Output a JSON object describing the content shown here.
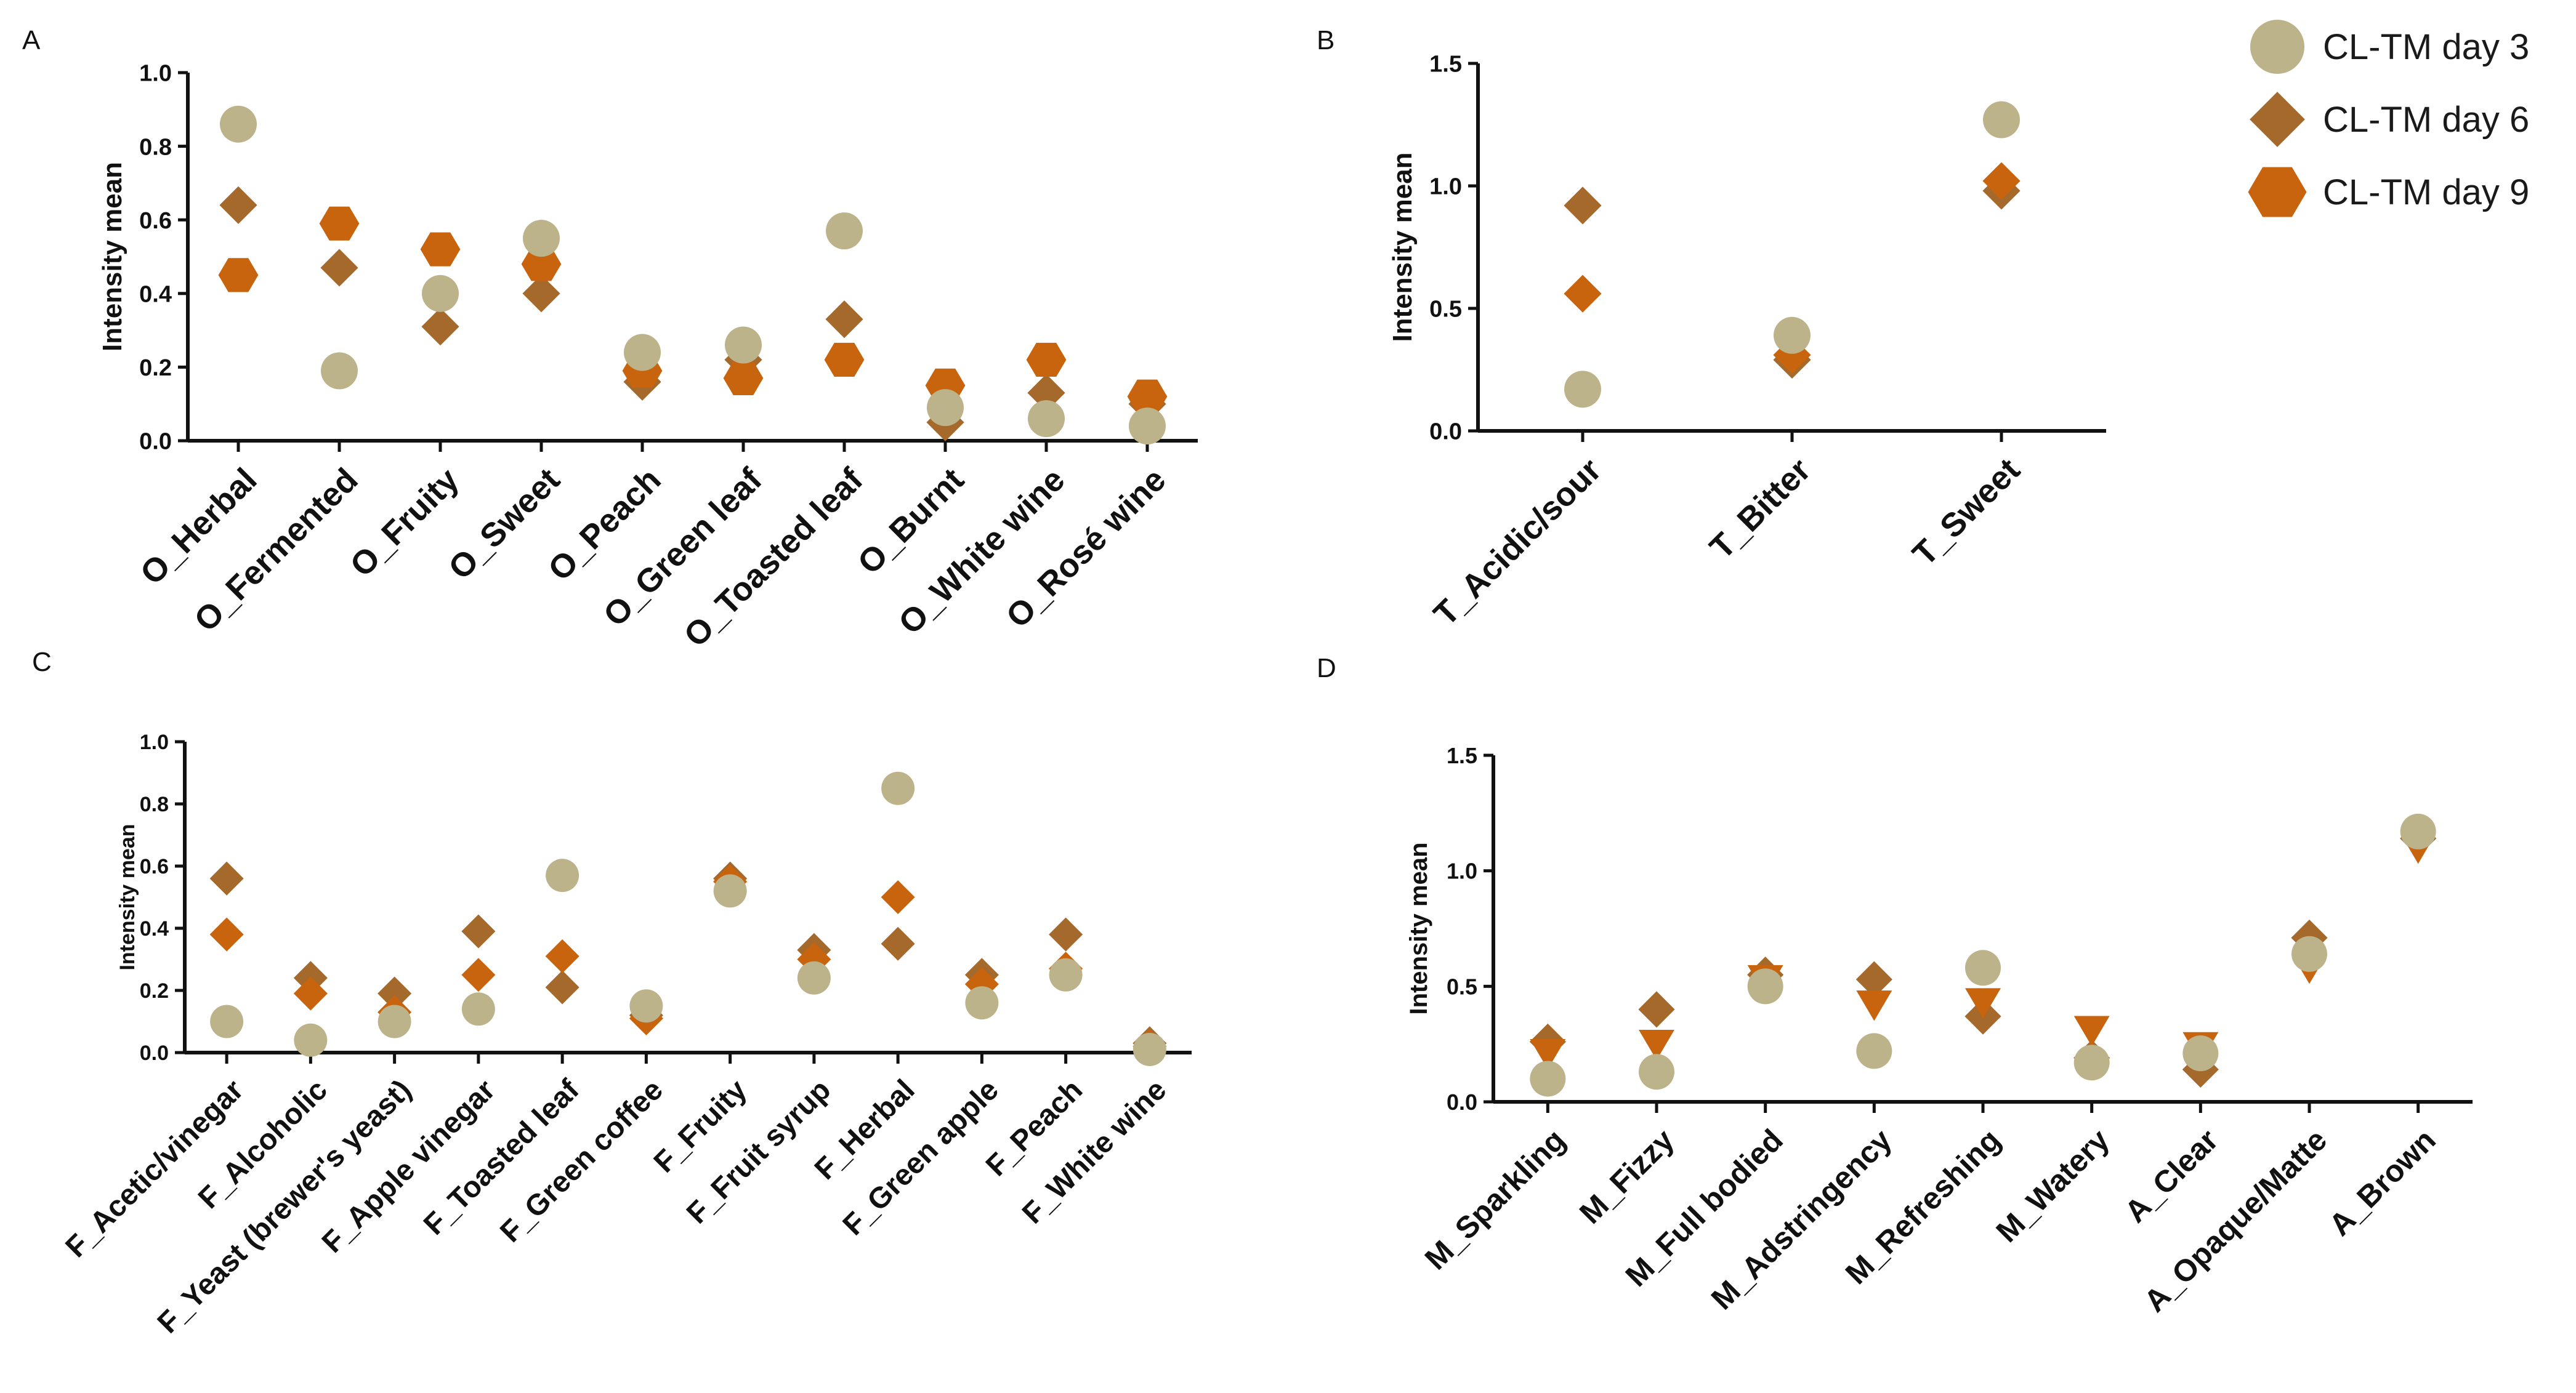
{
  "colors": {
    "CL-TM day 3": "#BDB38A",
    "CL-TM day 6": "#A6692C",
    "CL-TM day 9": "#C9640E"
  },
  "legend": [
    {
      "name": "CL-TM day 3",
      "marker": "circle"
    },
    {
      "name": "CL-TM day 6",
      "marker": "diamond"
    },
    {
      "name": "CL-TM day 9",
      "marker": "hexagon"
    }
  ],
  "chart_data": [
    {
      "panel": "A",
      "type": "scatter",
      "ylabel": "Intensity mean",
      "ylim": [
        0,
        1.0
      ],
      "yticks": [
        "0.0",
        "0.2",
        "0.4",
        "0.6",
        "0.8",
        "1.0"
      ],
      "categories": [
        "O_Herbal",
        "O_Fermented",
        "O_Fruity",
        "O_Sweet",
        "O_Peach",
        "O_Green leaf",
        "O_Toasted leaf",
        "O_Burnt",
        "O_White wine",
        "O_Rosé wine"
      ],
      "series": [
        {
          "name": "CL-TM day 3",
          "marker": "circle",
          "values": [
            0.86,
            0.19,
            0.4,
            0.55,
            0.24,
            0.26,
            0.57,
            0.09,
            0.06,
            0.04
          ]
        },
        {
          "name": "CL-TM day 6",
          "marker": "diamond",
          "values": [
            0.64,
            0.47,
            0.31,
            0.4,
            0.16,
            0.22,
            0.33,
            0.05,
            0.13,
            0.1
          ]
        },
        {
          "name": "CL-TM day 9",
          "marker": "hexagon",
          "values": [
            0.45,
            0.59,
            0.52,
            0.48,
            0.19,
            0.17,
            0.22,
            0.15,
            0.22,
            0.12
          ]
        }
      ]
    },
    {
      "panel": "B",
      "type": "scatter",
      "ylabel": "Intensity mean",
      "ylim": [
        0,
        1.5
      ],
      "yticks": [
        "0.0",
        "0.5",
        "1.0",
        "1.5"
      ],
      "categories": [
        "T_Acidic/sour",
        "T_Bitter",
        "T_Sweet"
      ],
      "series": [
        {
          "name": "CL-TM day 3",
          "marker": "circle",
          "values": [
            0.17,
            0.39,
            1.27
          ]
        },
        {
          "name": "CL-TM day 6",
          "marker": "diamond",
          "values": [
            0.92,
            0.29,
            0.98
          ]
        },
        {
          "name": "CL-TM day 9",
          "marker": "diamond",
          "values": [
            0.56,
            0.31,
            1.02
          ]
        }
      ]
    },
    {
      "panel": "C",
      "type": "scatter",
      "ylabel": "Intensity mean",
      "ylim": [
        0,
        1.0
      ],
      "yticks": [
        "0.0",
        "0.2",
        "0.4",
        "0.6",
        "0.8",
        "1.0"
      ],
      "categories": [
        "F_Acetic/vinegar",
        "F_Alcoholic",
        "F_Yeast (brewer's yeast)",
        "F_Apple vinegar",
        "F_Toasted leaf",
        "F_Green coffee",
        "F_Fruity",
        "F_Fruit syrup",
        "F_Herbal",
        "F_Green apple",
        "F_Peach",
        "F_White wine"
      ],
      "series": [
        {
          "name": "CL-TM day 3",
          "marker": "circle",
          "values": [
            0.1,
            0.04,
            0.1,
            0.14,
            0.57,
            0.15,
            0.52,
            0.24,
            0.85,
            0.16,
            0.25,
            0.01
          ]
        },
        {
          "name": "CL-TM day 6",
          "marker": "diamond",
          "values": [
            0.56,
            0.24,
            0.19,
            0.39,
            0.21,
            0.12,
            0.56,
            0.33,
            0.35,
            0.25,
            0.38,
            0.03
          ]
        },
        {
          "name": "CL-TM day 9",
          "marker": "diamond",
          "values": [
            0.38,
            0.19,
            0.13,
            0.25,
            0.31,
            0.11,
            0.55,
            0.3,
            0.5,
            0.22,
            0.27,
            0.02
          ]
        }
      ]
    },
    {
      "panel": "D",
      "type": "scatter",
      "ylabel": "Intensity mean",
      "ylim": [
        0,
        1.5
      ],
      "yticks": [
        "0.0",
        "0.5",
        "1.0",
        "1.5"
      ],
      "categories": [
        "M_Sparkling",
        "M_Fizzy",
        "M_Full bodied",
        "M_Adstringency",
        "M_Refreshing",
        "M_Watery",
        "A_Clear",
        "A_Opaque/Matte",
        "A_Brown"
      ],
      "series": [
        {
          "name": "CL-TM day 3",
          "marker": "circle",
          "values": [
            0.1,
            0.13,
            0.5,
            0.22,
            0.58,
            0.17,
            0.21,
            0.64,
            1.17
          ]
        },
        {
          "name": "CL-TM day 6",
          "marker": "diamond",
          "values": [
            0.26,
            0.4,
            0.55,
            0.53,
            0.37,
            0.19,
            0.14,
            0.71,
            1.14
          ]
        },
        {
          "name": "CL-TM day 9",
          "marker": "triangle-down",
          "values": [
            0.21,
            0.25,
            0.53,
            0.42,
            0.43,
            0.31,
            0.24,
            0.58,
            1.1
          ]
        }
      ]
    }
  ]
}
